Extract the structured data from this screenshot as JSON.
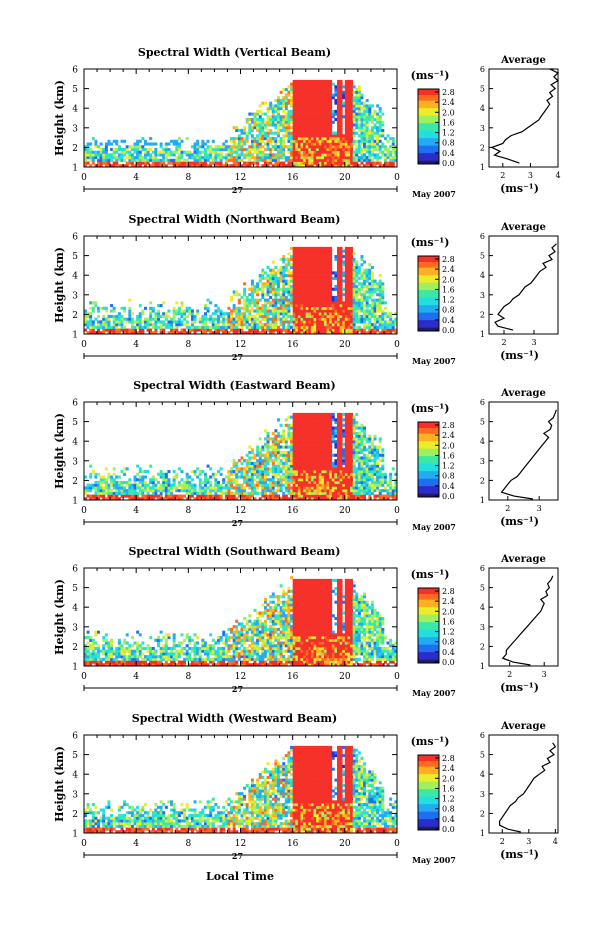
{
  "figure": {
    "date_label": "May 2007",
    "day_label": "27",
    "xlabel": "Local Time",
    "colorbar_unit": "(ms⁻¹)",
    "average_title": "Average",
    "average_xunit": "(ms⁻¹)",
    "colors": {
      "saturated": "#f5312a",
      "colormap": [
        "#1d1d6b",
        "#2c2cc8",
        "#1f6ff0",
        "#22aaf2",
        "#22dede",
        "#3ce8a8",
        "#a0ef5c",
        "#ecec2a",
        "#ffb020",
        "#ff6a20",
        "#f22c22"
      ]
    }
  },
  "chart_data": [
    {
      "type": "heatmap",
      "title": "Spectral Width (Vertical Beam)",
      "ylabel": "Height (km)",
      "xlim": [
        0,
        24
      ],
      "ylim": [
        1,
        6
      ],
      "xticks": [
        "0",
        "4",
        "8",
        "12",
        "16",
        "20",
        "0"
      ],
      "yticks": [
        "1",
        "2",
        "3",
        "4",
        "5",
        "6"
      ],
      "colorbar_ticks": [
        "0.0",
        "0.4",
        "0.8",
        "1.2",
        "1.6",
        "2.0",
        "2.4",
        "2.8"
      ],
      "avg": {
        "xlim": [
          1.5,
          4
        ],
        "xticks": [
          "2",
          "3",
          "4"
        ],
        "yticks": [
          "1",
          "2",
          "3",
          "4",
          "5",
          "6"
        ],
        "profile": [
          [
            2.6,
            1.2
          ],
          [
            2.2,
            1.4
          ],
          [
            1.7,
            1.6
          ],
          [
            1.9,
            1.8
          ],
          [
            1.6,
            2.0
          ],
          [
            2.0,
            2.2
          ],
          [
            2.1,
            2.4
          ],
          [
            2.3,
            2.6
          ],
          [
            2.7,
            2.8
          ],
          [
            2.9,
            3.0
          ],
          [
            3.1,
            3.2
          ],
          [
            3.3,
            3.4
          ],
          [
            3.4,
            3.6
          ],
          [
            3.5,
            3.8
          ],
          [
            3.6,
            4.0
          ],
          [
            3.7,
            4.2
          ],
          [
            3.6,
            4.4
          ],
          [
            3.8,
            4.6
          ],
          [
            3.7,
            4.8
          ],
          [
            3.9,
            5.0
          ],
          [
            3.75,
            5.2
          ],
          [
            4.0,
            5.4
          ],
          [
            3.85,
            5.6
          ],
          [
            4.0,
            5.8
          ],
          [
            3.7,
            6.0
          ],
          [
            3.85,
            6.0
          ]
        ]
      }
    },
    {
      "type": "heatmap",
      "title": "Spectral Width (Northward Beam)",
      "ylabel": "Height (km)",
      "xlim": [
        0,
        24
      ],
      "ylim": [
        1,
        6
      ],
      "xticks": [
        "0",
        "4",
        "8",
        "12",
        "16",
        "20",
        "0"
      ],
      "yticks": [
        "1",
        "2",
        "3",
        "4",
        "5",
        "6"
      ],
      "colorbar_ticks": [
        "0.0",
        "0.4",
        "0.8",
        "1.2",
        "1.6",
        "2.0",
        "2.4",
        "2.8"
      ],
      "avg": {
        "xlim": [
          1.5,
          3.8
        ],
        "xticks": [
          "2",
          "3"
        ],
        "yticks": [
          "1",
          "2",
          "3",
          "4",
          "5",
          "6"
        ],
        "profile": [
          [
            2.3,
            1.2
          ],
          [
            1.8,
            1.4
          ],
          [
            1.7,
            1.6
          ],
          [
            2.0,
            1.8
          ],
          [
            1.8,
            2.0
          ],
          [
            1.9,
            2.2
          ],
          [
            2.0,
            2.4
          ],
          [
            2.2,
            2.6
          ],
          [
            2.3,
            2.8
          ],
          [
            2.5,
            3.0
          ],
          [
            2.6,
            3.2
          ],
          [
            2.7,
            3.4
          ],
          [
            2.9,
            3.6
          ],
          [
            3.0,
            3.8
          ],
          [
            3.1,
            4.0
          ],
          [
            3.2,
            4.2
          ],
          [
            3.4,
            4.4
          ],
          [
            3.3,
            4.6
          ],
          [
            3.6,
            4.8
          ],
          [
            3.5,
            5.0
          ],
          [
            3.7,
            5.2
          ],
          [
            3.6,
            5.4
          ],
          [
            3.75,
            5.6
          ]
        ]
      }
    },
    {
      "type": "heatmap",
      "title": "Spectral Width (Eastward Beam)",
      "ylabel": "Height (km)",
      "xlim": [
        0,
        24
      ],
      "ylim": [
        1,
        6
      ],
      "xticks": [
        "0",
        "4",
        "8",
        "12",
        "16",
        "20",
        "0"
      ],
      "yticks": [
        "1",
        "2",
        "3",
        "4",
        "5",
        "6"
      ],
      "colorbar_ticks": [
        "0.0",
        "0.4",
        "0.8",
        "1.2",
        "1.6",
        "2.0",
        "2.4",
        "2.8"
      ],
      "avg": {
        "xlim": [
          1.4,
          3.6
        ],
        "xticks": [
          "2",
          "3"
        ],
        "yticks": [
          "1",
          "2",
          "3",
          "4",
          "5",
          "6"
        ],
        "profile": [
          [
            2.8,
            1.05
          ],
          [
            2.2,
            1.2
          ],
          [
            1.8,
            1.4
          ],
          [
            1.9,
            1.6
          ],
          [
            2.0,
            1.8
          ],
          [
            2.1,
            2.0
          ],
          [
            2.3,
            2.2
          ],
          [
            2.4,
            2.4
          ],
          [
            2.5,
            2.6
          ],
          [
            2.6,
            2.8
          ],
          [
            2.7,
            3.0
          ],
          [
            2.8,
            3.2
          ],
          [
            2.9,
            3.4
          ],
          [
            3.0,
            3.6
          ],
          [
            3.1,
            3.8
          ],
          [
            3.2,
            4.0
          ],
          [
            3.3,
            4.2
          ],
          [
            3.15,
            4.4
          ],
          [
            3.35,
            4.6
          ],
          [
            3.4,
            4.8
          ],
          [
            3.3,
            5.0
          ],
          [
            3.45,
            5.2
          ],
          [
            3.5,
            5.4
          ],
          [
            3.55,
            5.6
          ]
        ]
      }
    },
    {
      "type": "heatmap",
      "title": "Spectral Width (Southward Beam)",
      "ylabel": "Height (km)",
      "xlim": [
        0,
        24
      ],
      "ylim": [
        1,
        6
      ],
      "xticks": [
        "0",
        "4",
        "8",
        "12",
        "16",
        "20",
        "0"
      ],
      "yticks": [
        "1",
        "2",
        "3",
        "4",
        "5",
        "6"
      ],
      "colorbar_ticks": [
        "0.0",
        "0.4",
        "0.8",
        "1.2",
        "1.6",
        "2.0",
        "2.4",
        "2.8"
      ],
      "avg": {
        "xlim": [
          1.4,
          3.4
        ],
        "xticks": [
          "2",
          "3"
        ],
        "yticks": [
          "1",
          "2",
          "3",
          "4",
          "5",
          "6"
        ],
        "profile": [
          [
            2.6,
            1.05
          ],
          [
            2.1,
            1.2
          ],
          [
            1.8,
            1.4
          ],
          [
            1.9,
            1.6
          ],
          [
            1.9,
            1.8
          ],
          [
            2.0,
            2.0
          ],
          [
            2.1,
            2.2
          ],
          [
            2.2,
            2.4
          ],
          [
            2.3,
            2.6
          ],
          [
            2.4,
            2.8
          ],
          [
            2.5,
            3.0
          ],
          [
            2.6,
            3.2
          ],
          [
            2.7,
            3.4
          ],
          [
            2.8,
            3.6
          ],
          [
            2.9,
            3.8
          ],
          [
            2.95,
            4.0
          ],
          [
            3.0,
            4.2
          ],
          [
            2.9,
            4.4
          ],
          [
            3.1,
            4.6
          ],
          [
            3.05,
            4.8
          ],
          [
            3.15,
            5.0
          ],
          [
            3.1,
            5.2
          ],
          [
            3.2,
            5.4
          ],
          [
            3.25,
            5.6
          ]
        ]
      }
    },
    {
      "type": "heatmap",
      "title": "Spectral Width (Westward Beam)",
      "ylabel": "Height (km)",
      "xlim": [
        0,
        24
      ],
      "ylim": [
        1,
        6
      ],
      "xticks": [
        "0",
        "4",
        "8",
        "12",
        "16",
        "20",
        "0"
      ],
      "yticks": [
        "1",
        "2",
        "3",
        "4",
        "5",
        "6"
      ],
      "colorbar_ticks": [
        "0.0",
        "0.4",
        "0.8",
        "1.2",
        "1.6",
        "2.0",
        "2.4",
        "2.8"
      ],
      "avg": {
        "xlim": [
          1.5,
          4.1
        ],
        "xticks": [
          "2",
          "3",
          "4"
        ],
        "yticks": [
          "1",
          "2",
          "3",
          "4",
          "5",
          "6"
        ],
        "profile": [
          [
            2.7,
            1.05
          ],
          [
            2.2,
            1.2
          ],
          [
            1.9,
            1.4
          ],
          [
            1.9,
            1.6
          ],
          [
            2.0,
            1.8
          ],
          [
            2.1,
            2.0
          ],
          [
            2.2,
            2.2
          ],
          [
            2.3,
            2.4
          ],
          [
            2.5,
            2.6
          ],
          [
            2.6,
            2.8
          ],
          [
            2.8,
            3.0
          ],
          [
            2.9,
            3.2
          ],
          [
            3.0,
            3.4
          ],
          [
            3.1,
            3.6
          ],
          [
            3.2,
            3.8
          ],
          [
            3.4,
            4.0
          ],
          [
            3.6,
            4.2
          ],
          [
            3.5,
            4.4
          ],
          [
            3.8,
            4.6
          ],
          [
            3.7,
            4.8
          ],
          [
            3.95,
            5.0
          ],
          [
            3.8,
            5.2
          ],
          [
            4.0,
            5.4
          ],
          [
            3.9,
            5.6
          ]
        ]
      }
    }
  ]
}
